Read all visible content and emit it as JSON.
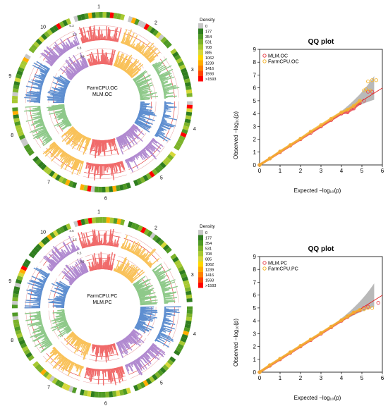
{
  "density_legend": {
    "title": "Density",
    "labels": [
      "0",
      "177",
      "354",
      "531",
      "708",
      "885",
      "1062",
      "1239",
      "1416",
      "1593",
      ">1593"
    ],
    "colors": [
      "#c8c8c8",
      "#2f7d1f",
      "#4f9a25",
      "#7cb32a",
      "#a8c932",
      "#d6d83a",
      "#ffd700",
      "#ffad00",
      "#ff8000",
      "#ff4500",
      "#ff0000"
    ]
  },
  "circos": [
    {
      "center_lines": [
        "FarmCPU.OC",
        "MLM.OC"
      ],
      "chromosomes": [
        "1",
        "2",
        "3",
        "4",
        "5",
        "6",
        "7",
        "8",
        "9",
        "10"
      ],
      "chrom_colors": [
        "#f06b6b",
        "#f9c25a",
        "#8fc98a",
        "#5f8fd0",
        "#b18ad0",
        "#f06b6b",
        "#f9c25a",
        "#8fc98a",
        "#5f8fd0",
        "#b18ad0"
      ],
      "outer_ring_ticks": [
        "6.3",
        "3.3"
      ],
      "inner_ring_ticks": [
        "6.8",
        "3.8"
      ]
    },
    {
      "center_lines": [
        "FarmCPU.PC",
        "MLM.PC"
      ],
      "chromosomes": [
        "1",
        "2",
        "3",
        "4",
        "5",
        "6",
        "7",
        "8",
        "9",
        "10"
      ],
      "chrom_colors": [
        "#f06b6b",
        "#f9c25a",
        "#8fc98a",
        "#5f8fd0",
        "#b18ad0",
        "#f06b6b",
        "#f9c25a",
        "#8fc98a",
        "#5f8fd0",
        "#b18ad0"
      ],
      "outer_ring_ticks": [
        "4.5",
        "2.5"
      ],
      "inner_ring_ticks": [
        "6.5",
        "3.5"
      ]
    }
  ],
  "chart_data": [
    {
      "type": "scatter",
      "title": "QQ plot",
      "xlabel": "Expected  −log₁₀(p)",
      "ylabel": "Observed  −log₁₀(p)",
      "xlim": [
        0,
        6
      ],
      "ylim": [
        0,
        9
      ],
      "xticks": [
        "0",
        "1",
        "2",
        "3",
        "4",
        "5",
        "6"
      ],
      "yticks": [
        "0",
        "1",
        "2",
        "3",
        "4",
        "5",
        "6",
        "7",
        "8",
        "9"
      ],
      "series": [
        {
          "name": "MLM.OC",
          "color": "#e8474f",
          "x": [
            0,
            0.5,
            1,
            1.5,
            2,
            2.5,
            3,
            3.5,
            4,
            4.3,
            4.6,
            4.9,
            5.1,
            5.3,
            5.5
          ],
          "y": [
            0,
            0.5,
            1,
            1.5,
            2,
            2.5,
            3,
            3.5,
            4,
            4.1,
            4.4,
            4.8,
            5.0,
            5.7,
            5.7
          ]
        },
        {
          "name": "FarmCPU.OC",
          "color": "#f5b52e",
          "x": [
            0,
            0.5,
            1,
            1.5,
            2,
            2.5,
            3,
            3.5,
            4,
            4.3,
            4.6,
            4.9,
            5.1,
            5.3,
            5.5,
            5.7,
            5.2,
            5.4
          ],
          "y": [
            0,
            0.5,
            1.05,
            1.55,
            2.05,
            2.6,
            3.1,
            3.6,
            4.1,
            4.3,
            4.6,
            5.0,
            5.8,
            6.5,
            6.6,
            6.6,
            5.9,
            5.8
          ]
        }
      ],
      "diagonal": {
        "color": "#e02020"
      },
      "confidence_band_color": "#a8a8a8"
    },
    {
      "type": "scatter",
      "title": "QQ plot",
      "xlabel": "Expected  −log₁₀(p)",
      "ylabel": "Observed  −log₁₀(p)",
      "xlim": [
        0,
        6
      ],
      "ylim": [
        0,
        9
      ],
      "xticks": [
        "0",
        "1",
        "2",
        "3",
        "4",
        "5",
        "6"
      ],
      "yticks": [
        "0",
        "1",
        "2",
        "3",
        "4",
        "5",
        "6",
        "7",
        "8",
        "9"
      ],
      "series": [
        {
          "name": "MLM.PC",
          "color": "#e8474f",
          "x": [
            0,
            0.5,
            1,
            1.5,
            2,
            2.5,
            3,
            3.5,
            4,
            4.3,
            4.6,
            4.9,
            5.1,
            5.3,
            5.8
          ],
          "y": [
            0,
            0.5,
            1,
            1.5,
            2,
            2.5,
            3,
            3.5,
            4,
            4.3,
            4.6,
            4.8,
            5.0,
            5.1,
            5.4
          ]
        },
        {
          "name": "FarmCPU.PC",
          "color": "#f5b52e",
          "x": [
            0,
            0.5,
            1,
            1.5,
            2,
            2.5,
            3,
            3.5,
            4,
            4.3,
            4.6,
            4.9,
            5.1,
            5.3,
            5.5
          ],
          "y": [
            0,
            0.55,
            1.05,
            1.55,
            2.05,
            2.55,
            3.05,
            3.55,
            4.05,
            4.35,
            4.65,
            4.85,
            4.9,
            5.0,
            5.0
          ]
        }
      ],
      "diagonal": {
        "color": "#e02020"
      },
      "confidence_band_color": "#a8a8a8"
    }
  ]
}
